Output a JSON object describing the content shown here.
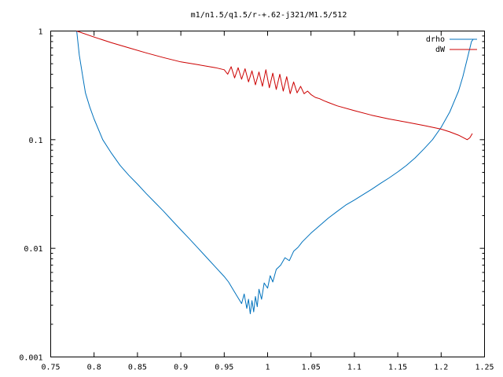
{
  "chart_data": {
    "type": "line",
    "title": "m1/n1.5/q1.5/r-+.62-j321/M1.5/512",
    "xlabel": "",
    "ylabel": "",
    "xlim": [
      0.75,
      1.25
    ],
    "ylim": [
      0.001,
      1
    ],
    "y_scale": "log",
    "grid": false,
    "legend_position": "top-right",
    "x_ticks": [
      0.75,
      0.8,
      0.85,
      0.9,
      0.95,
      1,
      1.05,
      1.1,
      1.15,
      1.2,
      1.25
    ],
    "x_tick_labels": [
      "0.75",
      "0.8",
      "0.85",
      "0.9",
      "0.95",
      "1",
      "1.05",
      "1.1",
      "1.15",
      "1.2",
      "1.25"
    ],
    "y_ticks": [
      0.001,
      0.01,
      0.1,
      1
    ],
    "y_tick_labels": [
      "0.001",
      "0.01",
      "0.1",
      "1"
    ],
    "series": [
      {
        "name": "drho",
        "color": "#0072bd",
        "x": [
          0.78,
          0.783,
          0.787,
          0.79,
          0.795,
          0.8,
          0.81,
          0.82,
          0.83,
          0.84,
          0.85,
          0.86,
          0.87,
          0.88,
          0.89,
          0.9,
          0.91,
          0.92,
          0.93,
          0.94,
          0.95,
          0.955,
          0.96,
          0.965,
          0.97,
          0.973,
          0.976,
          0.978,
          0.98,
          0.982,
          0.984,
          0.986,
          0.988,
          0.99,
          0.993,
          0.996,
          1.0,
          1.003,
          1.006,
          1.01,
          1.015,
          1.02,
          1.025,
          1.03,
          1.035,
          1.04,
          1.05,
          1.06,
          1.07,
          1.08,
          1.09,
          1.1,
          1.11,
          1.12,
          1.13,
          1.14,
          1.15,
          1.16,
          1.17,
          1.18,
          1.19,
          1.2,
          1.21,
          1.22,
          1.225,
          1.23,
          1.235,
          1.237
        ],
        "y": [
          1.0,
          0.6,
          0.38,
          0.27,
          0.2,
          0.155,
          0.1,
          0.075,
          0.058,
          0.047,
          0.039,
          0.032,
          0.0265,
          0.022,
          0.018,
          0.0148,
          0.0122,
          0.01,
          0.0082,
          0.0067,
          0.0055,
          0.0049,
          0.0042,
          0.0036,
          0.0031,
          0.0038,
          0.0028,
          0.0034,
          0.0025,
          0.0033,
          0.0026,
          0.0036,
          0.0029,
          0.0042,
          0.0034,
          0.0048,
          0.0043,
          0.0056,
          0.0049,
          0.0064,
          0.007,
          0.0082,
          0.0077,
          0.0094,
          0.0102,
          0.0115,
          0.0138,
          0.0162,
          0.019,
          0.0218,
          0.025,
          0.0278,
          0.0312,
          0.035,
          0.0395,
          0.0445,
          0.0505,
          0.058,
          0.068,
          0.082,
          0.1,
          0.13,
          0.18,
          0.28,
          0.38,
          0.55,
          0.8,
          0.84
        ]
      },
      {
        "name": "dW",
        "color": "#cc0000",
        "x": [
          0.78,
          0.8,
          0.82,
          0.84,
          0.86,
          0.88,
          0.9,
          0.92,
          0.94,
          0.95,
          0.954,
          0.958,
          0.962,
          0.966,
          0.97,
          0.974,
          0.978,
          0.982,
          0.986,
          0.99,
          0.994,
          0.998,
          1.002,
          1.006,
          1.01,
          1.014,
          1.018,
          1.022,
          1.026,
          1.03,
          1.034,
          1.038,
          1.042,
          1.046,
          1.05,
          1.055,
          1.06,
          1.065,
          1.07,
          1.08,
          1.1,
          1.12,
          1.14,
          1.16,
          1.18,
          1.2,
          1.21,
          1.22,
          1.23,
          1.233,
          1.236
        ],
        "y": [
          1.0,
          0.88,
          0.78,
          0.7,
          0.63,
          0.57,
          0.52,
          0.49,
          0.46,
          0.44,
          0.4,
          0.47,
          0.37,
          0.46,
          0.36,
          0.45,
          0.34,
          0.43,
          0.32,
          0.42,
          0.31,
          0.44,
          0.3,
          0.41,
          0.29,
          0.4,
          0.28,
          0.38,
          0.265,
          0.34,
          0.27,
          0.31,
          0.265,
          0.28,
          0.26,
          0.245,
          0.238,
          0.228,
          0.22,
          0.205,
          0.185,
          0.168,
          0.155,
          0.145,
          0.135,
          0.125,
          0.118,
          0.11,
          0.1,
          0.104,
          0.114
        ]
      }
    ]
  }
}
